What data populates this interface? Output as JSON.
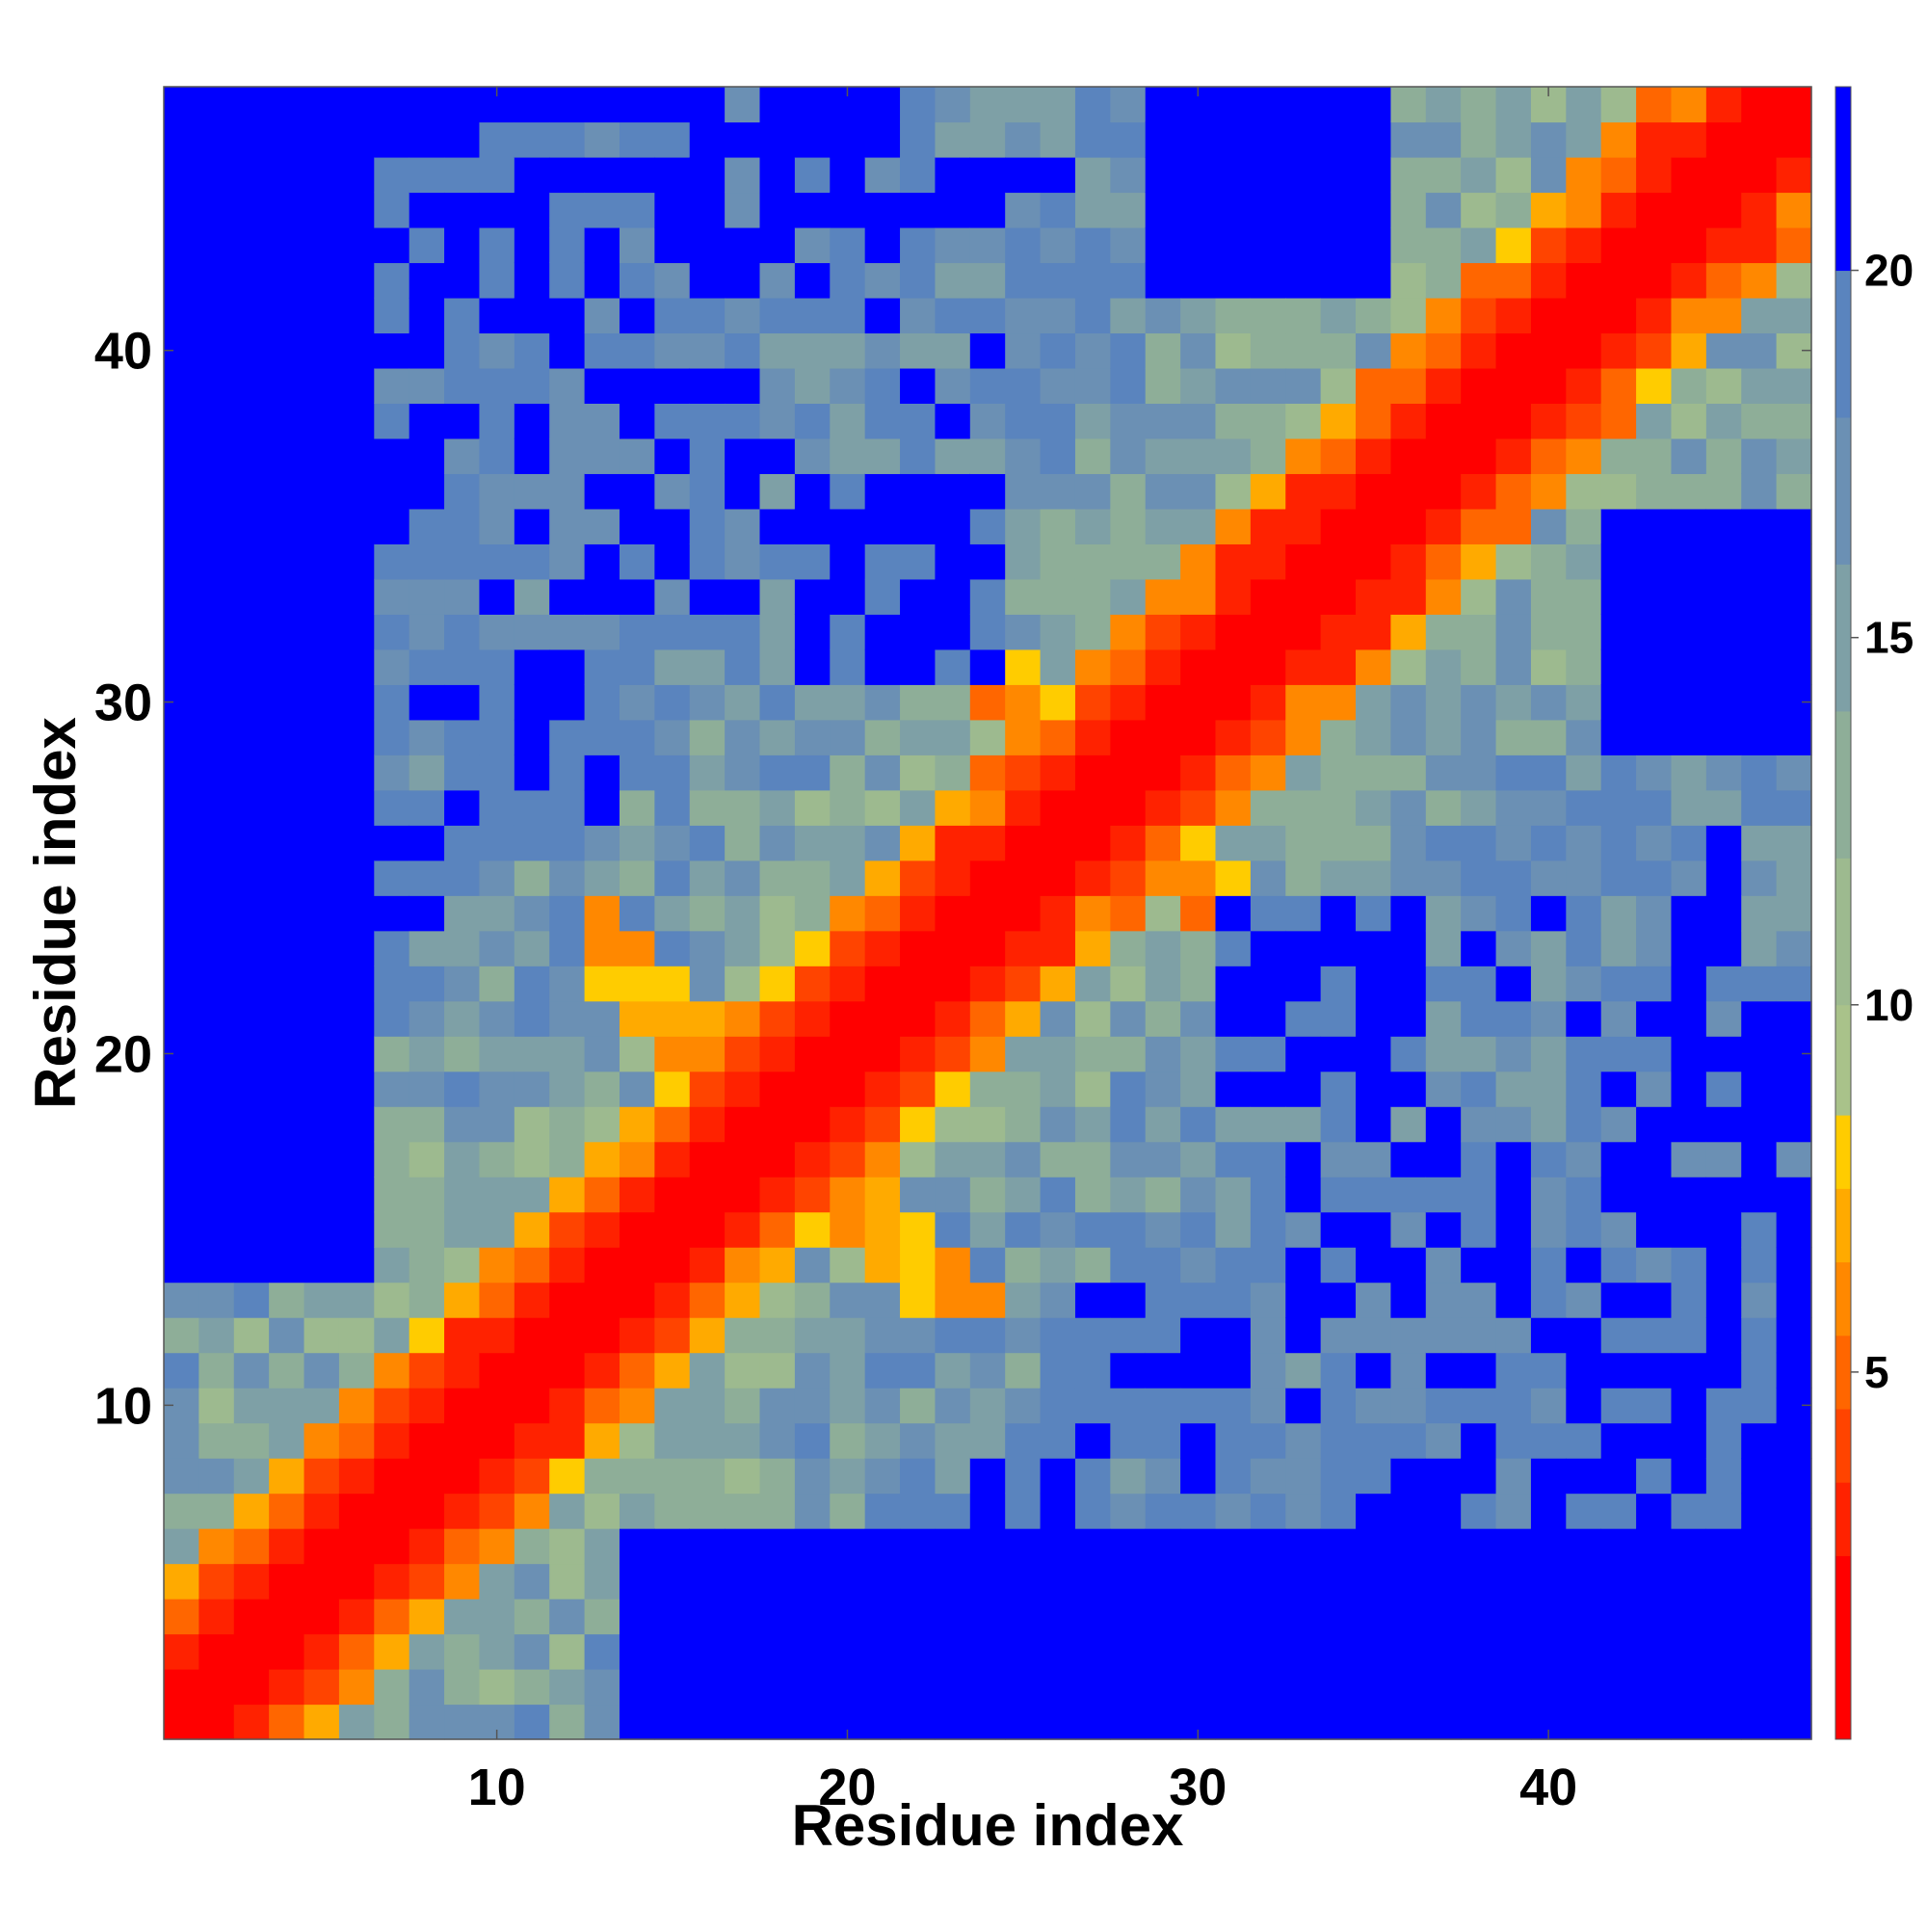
{
  "chart_data": {
    "type": "heatmap",
    "xlabel": "Residue index",
    "ylabel": "Residue index",
    "n": 47,
    "x_ticks": [
      10,
      20,
      30,
      40
    ],
    "y_ticks": [
      10,
      20,
      30,
      40
    ],
    "colorbar_ticks": [
      5,
      10,
      15,
      20
    ],
    "colorbar_range": [
      0,
      22.5
    ],
    "colormap": [
      {
        "max": 2.5,
        "color": "#ff0000"
      },
      {
        "max": 3.5,
        "color": "#ff2200"
      },
      {
        "max": 4.5,
        "color": "#ff4400"
      },
      {
        "max": 5.5,
        "color": "#ff6600"
      },
      {
        "max": 6.5,
        "color": "#ff8800"
      },
      {
        "max": 7.5,
        "color": "#ffaa00"
      },
      {
        "max": 8.5,
        "color": "#ffcc00"
      },
      {
        "max": 10.0,
        "color": "#a9c28a"
      },
      {
        "max": 12.0,
        "color": "#9dba8f"
      },
      {
        "max": 14.0,
        "color": "#8eae98"
      },
      {
        "max": 16.0,
        "color": "#7ea0a6"
      },
      {
        "max": 18.0,
        "color": "#6b90b4"
      },
      {
        "max": 20.0,
        "color": "#5a84be"
      },
      {
        "max": 99,
        "color": "#0000ff"
      }
    ],
    "matrix_rule": "z[i][j] = distance between residue i and residue j (data units); symmetric, 0 on the diagonal",
    "diagonal_band": "values < 3 within |i-j| <= 2",
    "approx_distance": "d = min(22, 2.2 + 3.1*|i-j|) modulated by structure; blue regions where d >= 20"
  }
}
